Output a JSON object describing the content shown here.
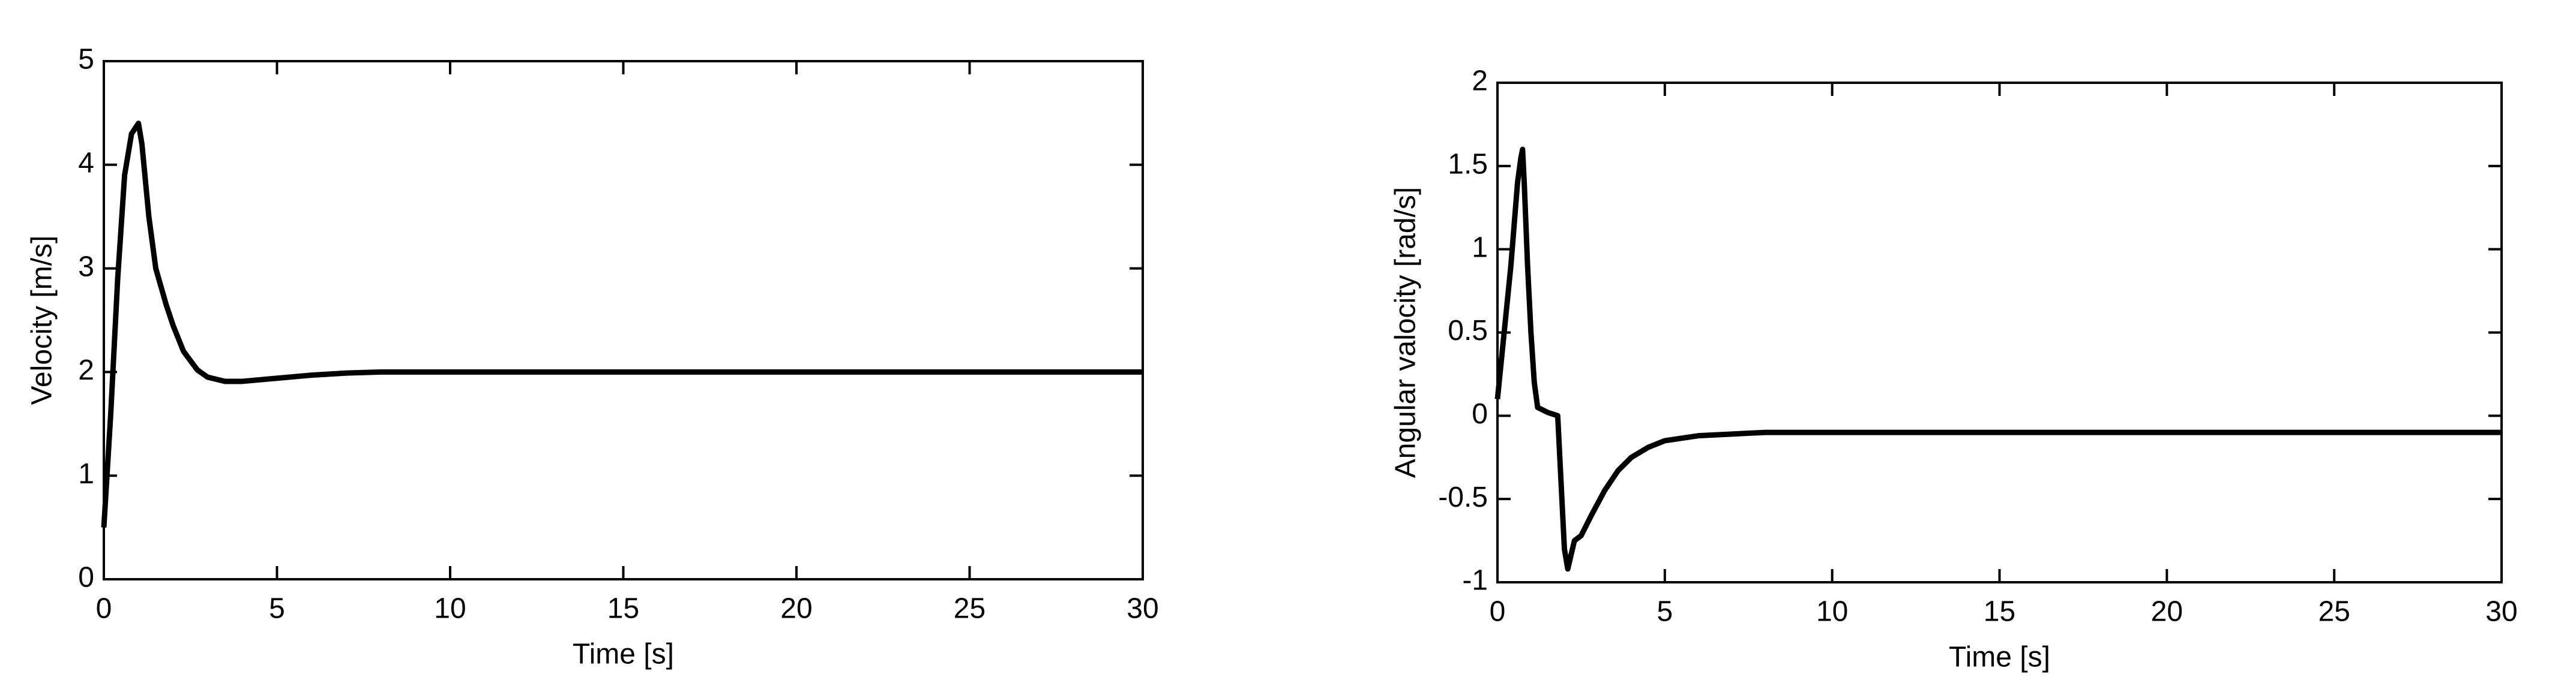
{
  "chart_data": [
    {
      "type": "line",
      "x_label": "Time [s]",
      "y_label": "Velocity [m/s]",
      "color": "#000000",
      "x": [
        0,
        0.2,
        0.4,
        0.6,
        0.8,
        0.9,
        1.0,
        1.1,
        1.3,
        1.5,
        1.8,
        2.0,
        2.3,
        2.7,
        3.0,
        3.5,
        4,
        5,
        6,
        7,
        8,
        10,
        15,
        20,
        25,
        30
      ],
      "values": [
        0.5,
        1.6,
        2.9,
        3.9,
        4.3,
        4.35,
        4.4,
        4.2,
        3.5,
        3.0,
        2.65,
        2.45,
        2.2,
        2.02,
        1.95,
        1.91,
        1.91,
        1.94,
        1.97,
        1.99,
        2.0,
        2.0,
        2.0,
        2.0,
        2.0,
        2.0
      ],
      "xlim": [
        0,
        30
      ],
      "ylim": [
        0,
        5
      ],
      "xticks": [
        0,
        5,
        10,
        15,
        20,
        25,
        30
      ],
      "yticks": [
        0,
        1,
        2,
        3,
        4,
        5
      ]
    },
    {
      "type": "line",
      "x_label": "Time [s]",
      "y_label": "Angular valocity [rad/s]",
      "color": "#000000",
      "x": [
        0,
        0.2,
        0.4,
        0.6,
        0.7,
        0.75,
        0.8,
        0.9,
        1.0,
        1.1,
        1.2,
        1.5,
        1.8,
        1.9,
        2.0,
        2.1,
        2.3,
        2.5,
        2.8,
        3.2,
        3.6,
        4.0,
        4.5,
        5,
        6,
        7,
        8,
        10,
        15,
        20,
        25,
        30
      ],
      "values": [
        0.1,
        0.5,
        0.9,
        1.4,
        1.55,
        1.6,
        1.4,
        0.9,
        0.5,
        0.2,
        0.05,
        0.02,
        0.0,
        -0.4,
        -0.8,
        -0.92,
        -0.75,
        -0.72,
        -0.6,
        -0.45,
        -0.33,
        -0.25,
        -0.19,
        -0.15,
        -0.12,
        -0.11,
        -0.1,
        -0.1,
        -0.1,
        -0.1,
        -0.1,
        -0.1
      ],
      "xlim": [
        0,
        30
      ],
      "ylim": [
        -1,
        2
      ],
      "xticks": [
        0,
        5,
        10,
        15,
        20,
        25,
        30
      ],
      "yticks": [
        -1,
        -0.5,
        0,
        0.5,
        1,
        1.5,
        2
      ]
    }
  ]
}
